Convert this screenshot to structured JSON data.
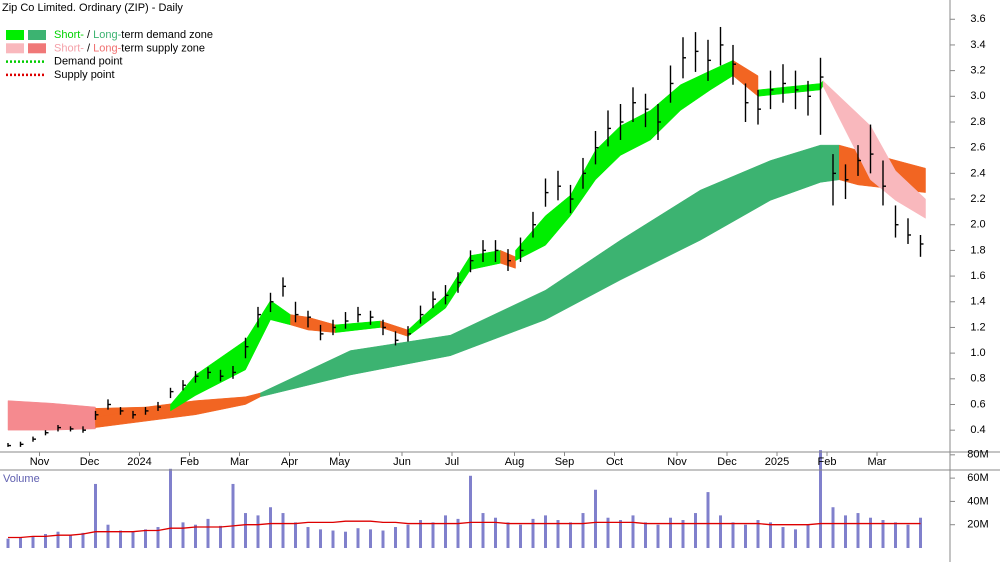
{
  "chart_data": {
    "type": "ohlc",
    "title": "Zip Co Limited. Ordinary (ZIP) - Daily",
    "legend": [
      {
        "parts": [
          {
            "text": "Short-",
            "color": "#00d200"
          },
          {
            "text": " / "
          },
          {
            "text": "Long-",
            "color": "#3cb371"
          },
          {
            "text": "term demand zone"
          }
        ],
        "swatches": [
          "#00ee00",
          "#3cb371"
        ]
      },
      {
        "parts": [
          {
            "text": "Short-",
            "color": "#f4a0a8"
          },
          {
            "text": " / "
          },
          {
            "text": "Long-",
            "color": "#f07070"
          },
          {
            "text": "term supply zone"
          }
        ],
        "swatches": [
          "#f9b8bd",
          "#f07878"
        ]
      },
      {
        "parts": [
          {
            "text": "Demand point"
          }
        ],
        "line_color": "#00cc00"
      },
      {
        "parts": [
          {
            "text": "Supply point"
          }
        ],
        "line_color": "#dd0000"
      }
    ],
    "categories": [
      null,
      null,
      null,
      "Nov",
      null,
      null,
      null,
      "Dec",
      null,
      null,
      null,
      "2024",
      null,
      null,
      null,
      "Feb",
      null,
      null,
      null,
      "Mar",
      null,
      null,
      null,
      "Apr",
      null,
      null,
      null,
      "May",
      null,
      null,
      null,
      null,
      "Jun",
      null,
      null,
      null,
      "Jul",
      null,
      null,
      null,
      null,
      "Aug",
      null,
      null,
      null,
      "Sep",
      null,
      null,
      null,
      "Oct",
      null,
      null,
      null,
      null,
      "Nov",
      null,
      null,
      null,
      "Dec",
      null,
      null,
      null,
      "2025",
      null,
      null,
      null,
      "Feb",
      null,
      null,
      null,
      "Mar",
      null,
      null,
      null
    ],
    "high": [
      0.3,
      0.31,
      0.35,
      0.4,
      0.44,
      0.43,
      0.43,
      0.55,
      0.64,
      0.58,
      0.55,
      0.58,
      0.62,
      0.73,
      0.79,
      0.86,
      0.89,
      0.87,
      0.9,
      1.12,
      1.36,
      1.47,
      1.59,
      1.4,
      1.33,
      1.22,
      1.26,
      1.32,
      1.36,
      1.33,
      1.26,
      1.17,
      1.21,
      1.37,
      1.48,
      1.53,
      1.63,
      1.8,
      1.88,
      1.88,
      1.81,
      1.9,
      2.1,
      2.36,
      2.42,
      2.31,
      2.52,
      2.73,
      2.89,
      2.94,
      3.07,
      3.02,
      2.94,
      3.24,
      3.46,
      3.5,
      3.44,
      3.54,
      3.4,
      3.1,
      3.05,
      3.2,
      3.25,
      3.2,
      3.12,
      3.3,
      2.55,
      2.47,
      2.62,
      2.78,
      2.5,
      2.15,
      2.05,
      1.92
    ],
    "low": [
      0.27,
      0.27,
      0.31,
      0.36,
      0.39,
      0.39,
      0.38,
      0.48,
      0.56,
      0.52,
      0.49,
      0.52,
      0.55,
      0.65,
      0.71,
      0.77,
      0.8,
      0.78,
      0.8,
      0.96,
      1.2,
      1.32,
      1.44,
      1.24,
      1.2,
      1.1,
      1.14,
      1.19,
      1.24,
      1.22,
      1.14,
      1.06,
      1.09,
      1.23,
      1.35,
      1.38,
      1.47,
      1.63,
      1.71,
      1.71,
      1.64,
      1.71,
      1.9,
      2.14,
      2.19,
      2.09,
      2.28,
      2.47,
      2.61,
      2.66,
      2.8,
      2.76,
      2.66,
      2.95,
      3.14,
      3.19,
      3.12,
      3.24,
      3.09,
      2.8,
      2.78,
      2.9,
      2.95,
      2.9,
      2.85,
      2.7,
      2.15,
      2.2,
      2.38,
      2.4,
      2.15,
      1.9,
      1.85,
      1.75
    ],
    "close": [
      0.28,
      0.29,
      0.33,
      0.38,
      0.42,
      0.41,
      0.4,
      0.52,
      0.6,
      0.55,
      0.52,
      0.55,
      0.58,
      0.7,
      0.75,
      0.82,
      0.85,
      0.82,
      0.85,
      1.05,
      1.3,
      1.4,
      1.52,
      1.3,
      1.28,
      1.15,
      1.2,
      1.25,
      1.3,
      1.28,
      1.2,
      1.1,
      1.15,
      1.3,
      1.42,
      1.45,
      1.55,
      1.72,
      1.8,
      1.8,
      1.72,
      1.8,
      2.0,
      2.25,
      2.3,
      2.2,
      2.4,
      2.6,
      2.75,
      2.8,
      2.95,
      2.9,
      2.8,
      3.1,
      3.3,
      3.35,
      3.28,
      3.4,
      3.25,
      2.95,
      2.9,
      3.05,
      3.1,
      3.05,
      3.0,
      3.15,
      2.4,
      2.35,
      2.5,
      2.55,
      2.3,
      2.0,
      1.92,
      1.85
    ],
    "color": "#000000",
    "ylim": [
      0.23,
      3.75
    ],
    "yticks": [
      0.4,
      0.6,
      0.8,
      {
        "value": 1,
        "label": "1.0"
      },
      1.2,
      1.4,
      1.6,
      1.8,
      {
        "value": 2,
        "label": "2.0"
      },
      2.2,
      2.4,
      2.6,
      2.8,
      {
        "value": 3,
        "label": "3.0"
      },
      3.2,
      3.4,
      3.6
    ],
    "zones": [
      {
        "color": "#f58a8f",
        "x": [
          0,
          3.5,
          7
        ],
        "upper": [
          0.63,
          0.61,
          0.58
        ],
        "lower": [
          0.4,
          0.4,
          0.41
        ]
      },
      {
        "color": "#f26522",
        "x": [
          7,
          11,
          15,
          19,
          20.2
        ],
        "upper": [
          0.57,
          0.58,
          0.63,
          0.66,
          0.69
        ],
        "lower": [
          0.42,
          0.47,
          0.52,
          0.6,
          0.66
        ]
      },
      {
        "color": "#3cb371",
        "x": [
          20.2,
          27.4,
          35.4,
          43,
          49,
          55.4,
          61,
          65,
          66.5
        ],
        "upper": [
          0.69,
          1.02,
          1.14,
          1.49,
          1.88,
          2.27,
          2.5,
          2.62,
          2.62
        ],
        "lower": [
          0.66,
          0.83,
          0.98,
          1.26,
          1.57,
          1.88,
          2.19,
          2.33,
          2.35
        ]
      },
      {
        "color": "#f26522",
        "x": [
          66.5,
          68,
          73.4
        ],
        "upper": [
          2.62,
          2.58,
          2.44
        ],
        "lower": [
          2.35,
          2.31,
          2.25
        ]
      },
      {
        "color": "#f26522",
        "x": [
          7,
          10,
          13
        ],
        "upper": [
          0.5,
          0.55,
          0.58
        ],
        "lower": [
          0.44,
          0.47,
          0.52
        ]
      },
      {
        "color": "#00ee00",
        "x": [
          13,
          15,
          19,
          21,
          22.6
        ],
        "upper": [
          0.6,
          0.83,
          1.1,
          1.41,
          1.3
        ],
        "lower": [
          0.55,
          0.67,
          0.87,
          1.26,
          1.22
        ]
      },
      {
        "color": "#f26522",
        "x": [
          22.6,
          24,
          26.2
        ],
        "upper": [
          1.3,
          1.28,
          1.22
        ],
        "lower": [
          1.22,
          1.18,
          1.16
        ]
      },
      {
        "color": "#00ee00",
        "x": [
          26.2,
          29.8
        ],
        "upper": [
          1.22,
          1.25
        ],
        "lower": [
          1.16,
          1.2
        ]
      },
      {
        "color": "#f26522",
        "x": [
          29.8,
          32
        ],
        "upper": [
          1.25,
          1.18
        ],
        "lower": [
          1.2,
          1.13
        ]
      },
      {
        "color": "#00ee00",
        "x": [
          32,
          35,
          37,
          39.4
        ],
        "upper": [
          1.18,
          1.45,
          1.76,
          1.8
        ],
        "lower": [
          1.13,
          1.35,
          1.65,
          1.7
        ]
      },
      {
        "color": "#f26522",
        "x": [
          39.4,
          40.6
        ],
        "upper": [
          1.8,
          1.75
        ],
        "lower": [
          1.7,
          1.66
        ]
      },
      {
        "color": "#00ee00",
        "x": [
          40.6,
          43,
          45,
          47,
          49,
          51.4,
          53.8,
          56.2,
          58
        ],
        "upper": [
          1.8,
          2.07,
          2.23,
          2.58,
          2.77,
          2.89,
          3.09,
          3.2,
          3.28
        ],
        "lower": [
          1.72,
          1.84,
          2.07,
          2.35,
          2.54,
          2.66,
          2.89,
          3.05,
          3.16
        ]
      },
      {
        "color": "#f26522",
        "x": [
          58,
          60
        ],
        "upper": [
          3.28,
          3.16
        ],
        "lower": [
          3.16,
          3.0
        ]
      },
      {
        "color": "#00ee00",
        "x": [
          60,
          65,
          65.2
        ],
        "upper": [
          3.05,
          3.1,
          3.12
        ],
        "lower": [
          3.0,
          3.05,
          3.08
        ]
      },
      {
        "color": "#f9b8bd",
        "x": [
          65.2,
          69,
          71,
          73.4
        ],
        "upper": [
          3.12,
          2.77,
          2.42,
          2.2
        ],
        "lower": [
          3.08,
          2.35,
          2.19,
          2.05
        ]
      }
    ],
    "volume": {
      "label": "Volume",
      "color": "#8080cc",
      "values": [
        8,
        9,
        10,
        12,
        14,
        11,
        13,
        55,
        20,
        15,
        14,
        16,
        18,
        68,
        22,
        20,
        25,
        19,
        55,
        30,
        28,
        35,
        30,
        22,
        18,
        16,
        15,
        14,
        17,
        16,
        15,
        18,
        20,
        24,
        22,
        28,
        25,
        62,
        30,
        26,
        22,
        20,
        25,
        28,
        24,
        22,
        30,
        50,
        26,
        24,
        28,
        22,
        20,
        26,
        24,
        30,
        48,
        28,
        22,
        20,
        24,
        22,
        18,
        16,
        20,
        84,
        35,
        28,
        30,
        26,
        24,
        22,
        20,
        26
      ],
      "ma": {
        "color": "#dd0000",
        "values": [
          9,
          9,
          10,
          10,
          11,
          11,
          12,
          14,
          14,
          14,
          14,
          15,
          15,
          17,
          17,
          18,
          18,
          18,
          19,
          20,
          20,
          21,
          21,
          21,
          22,
          22,
          22,
          23,
          23,
          23,
          22,
          22,
          21,
          21,
          21,
          21,
          21,
          22,
          22,
          22,
          21,
          21,
          21,
          21,
          21,
          21,
          21,
          22,
          22,
          22,
          22,
          21,
          21,
          21,
          21,
          21,
          21,
          21,
          21,
          21,
          21,
          20,
          20,
          20,
          20,
          21,
          21,
          21,
          21,
          21,
          21,
          21,
          21,
          21
        ]
      },
      "ylim": [
        0,
        85
      ],
      "yticks": [
        {
          "value": 20,
          "label": "20M"
        },
        {
          "value": 40,
          "label": "40M"
        },
        {
          "value": 60,
          "label": "60M"
        },
        {
          "value": 80,
          "label": "80M"
        }
      ]
    }
  }
}
